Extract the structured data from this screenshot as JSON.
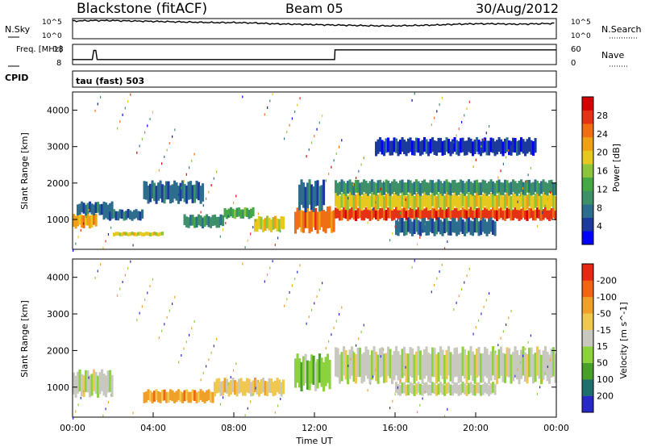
{
  "header": {
    "station": "Blackstone (fitACF)",
    "beam": "Beam 05",
    "date": "30/Aug/2012"
  },
  "chart_data": [
    {
      "type": "line",
      "name": "noise",
      "left_label": "N.Sky",
      "right_label": "N.Search",
      "left_ticks": [
        "10^5",
        "10^0"
      ],
      "right_ticks": [
        "10^5",
        "10^0"
      ],
      "x": [
        0,
        1,
        2,
        3,
        4,
        5,
        6,
        7,
        8,
        9,
        10,
        11,
        12,
        13,
        14,
        15,
        16,
        17,
        18,
        19,
        20,
        21,
        22,
        23,
        24
      ],
      "values": [
        4.4,
        4.5,
        4.5,
        4.4,
        4.3,
        4.2,
        4.1,
        4.0,
        4.0,
        3.9,
        3.7,
        3.6,
        3.5,
        3.4,
        3.3,
        3.2,
        3.2,
        3.3,
        3.4,
        3.6,
        3.7,
        3.7,
        3.6,
        3.7,
        3.8
      ],
      "ylim": [
        0,
        5
      ]
    },
    {
      "type": "line",
      "name": "frequency-nave",
      "left_label": "Freq. [MHz]",
      "right_label": "Nave",
      "left_ticks": [
        "18",
        "8"
      ],
      "right_ticks": [
        "60",
        "0"
      ],
      "freq_x": [
        0,
        0.98,
        1.05,
        1.15,
        1.22,
        13.0,
        13.02,
        24
      ],
      "freq_values": [
        10.5,
        10.5,
        15,
        15,
        10.5,
        10.5,
        15.3,
        15.3
      ],
      "ylim": [
        8,
        18
      ]
    },
    {
      "type": "scatter",
      "name": "cpid",
      "left_label": "CPID",
      "program": "tau (fast) 503"
    },
    {
      "type": "heatmap",
      "name": "power",
      "ylabel": "Slant Range [km]",
      "yticks": [
        "1000",
        "2000",
        "3000",
        "4000"
      ],
      "ylim": [
        180,
        4500
      ],
      "xlim": [
        0,
        24
      ],
      "colorbar": {
        "label": "Power [dB]",
        "ticks": [
          "4",
          "8",
          "12",
          "16",
          "20",
          "24",
          "28"
        ],
        "colors": [
          "#0000ff",
          "#1c3a9c",
          "#2d6e8e",
          "#3e9068",
          "#44a844",
          "#8cc43c",
          "#e6c81e",
          "#f0a014",
          "#f06e14",
          "#e63214",
          "#d70000"
        ]
      },
      "bands": [
        {
          "t0": 0.0,
          "t1": 1.2,
          "r0": 800,
          "r1": 1150,
          "level": 7
        },
        {
          "t0": 0.2,
          "t1": 2.0,
          "r0": 1150,
          "r1": 1450,
          "level": 2
        },
        {
          "t0": 2.0,
          "t1": 4.5,
          "r0": 550,
          "r1": 650,
          "level": 6
        },
        {
          "t0": 1.5,
          "t1": 3.5,
          "r0": 1000,
          "r1": 1250,
          "level": 2
        },
        {
          "t0": 3.5,
          "t1": 6.5,
          "r0": 1500,
          "r1": 2000,
          "level": 2
        },
        {
          "t0": 5.5,
          "t1": 7.5,
          "r0": 800,
          "r1": 1100,
          "level": 3
        },
        {
          "t0": 7.5,
          "t1": 9.0,
          "r0": 1050,
          "r1": 1300,
          "level": 4
        },
        {
          "t0": 9.0,
          "t1": 10.5,
          "r0": 700,
          "r1": 1050,
          "level": 6
        },
        {
          "t0": 11.0,
          "t1": 13.0,
          "r0": 700,
          "r1": 1300,
          "level": 8
        },
        {
          "t0": 11.2,
          "t1": 12.5,
          "r0": 1300,
          "r1": 2000,
          "level": 2
        },
        {
          "t0": 13.0,
          "t1": 24.0,
          "r0": 1000,
          "r1": 1300,
          "level": 9
        },
        {
          "t0": 13.0,
          "t1": 24.0,
          "r0": 1300,
          "r1": 1700,
          "level": 6
        },
        {
          "t0": 13.0,
          "t1": 24.0,
          "r0": 1700,
          "r1": 2050,
          "level": 3
        },
        {
          "t0": 16.0,
          "t1": 21.0,
          "r0": 600,
          "r1": 1000,
          "level": 2
        },
        {
          "t0": 15.0,
          "t1": 23.0,
          "r0": 2800,
          "r1": 3200,
          "level": 1
        }
      ]
    },
    {
      "type": "heatmap",
      "name": "velocity",
      "ylabel": "Slant Range [km]",
      "yticks": [
        "1000",
        "2000",
        "3000",
        "4000"
      ],
      "ylim": [
        180,
        4500
      ],
      "xlim": [
        0,
        24
      ],
      "xticks": [
        "00:00",
        "04:00",
        "08:00",
        "12:00",
        "16:00",
        "20:00",
        "00:00"
      ],
      "xlabel": "Time UT",
      "colorbar": {
        "label": "Velocity [m s^-1]",
        "ticks": [
          "200",
          "100",
          "50",
          "15",
          "-15",
          "-50",
          "-100",
          "-200"
        ],
        "colors": [
          "#2828c8",
          "#1e6e6e",
          "#48a028",
          "#8cd23c",
          "#c8c8c0",
          "#f0c850",
          "#f0a028",
          "#f06414",
          "#e62814"
        ]
      },
      "bands": [
        {
          "t0": 0.0,
          "t1": 2.0,
          "r0": 800,
          "r1": 1400,
          "level": 4
        },
        {
          "t0": 3.5,
          "t1": 7.0,
          "r0": 600,
          "r1": 900,
          "level": 6
        },
        {
          "t0": 7.0,
          "t1": 10.5,
          "r0": 800,
          "r1": 1200,
          "level": 5
        },
        {
          "t0": 11.0,
          "t1": 12.8,
          "r0": 1000,
          "r1": 1800,
          "level": 3
        },
        {
          "t0": 13.0,
          "t1": 24.0,
          "r0": 1200,
          "r1": 2000,
          "level": 4
        },
        {
          "t0": 16.0,
          "t1": 21.0,
          "r0": 800,
          "r1": 1100,
          "level": 4
        }
      ]
    }
  ]
}
